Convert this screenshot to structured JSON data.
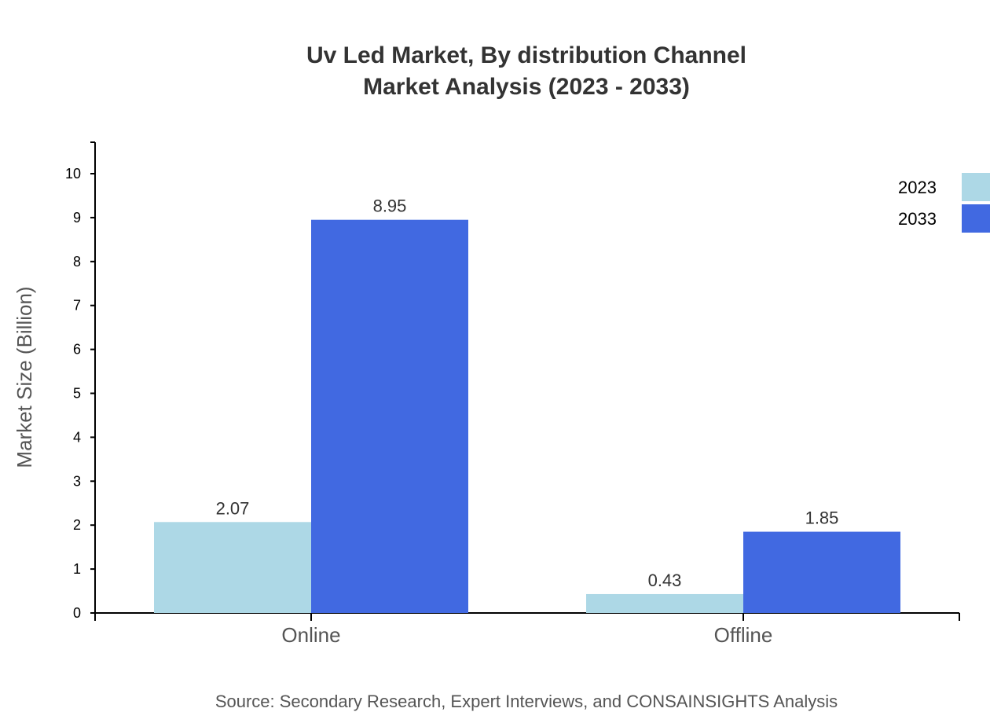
{
  "chart_data": {
    "type": "bar",
    "title_lines": [
      "Uv Led Market, By distribution Channel",
      "Market Analysis (2023 - 2033)"
    ],
    "xlabel": "",
    "ylabel": "Market Size (Billion)",
    "categories": [
      "Online",
      "Offline"
    ],
    "series": [
      {
        "name": "2023",
        "values": [
          2.07,
          0.43
        ],
        "color": "#ADD8E6"
      },
      {
        "name": "2033",
        "values": [
          8.95,
          1.85
        ],
        "color": "#4169E1"
      }
    ],
    "yticks": [
      0,
      1,
      2,
      3,
      4,
      5,
      6,
      7,
      8,
      9,
      10
    ],
    "ylim": [
      0,
      10.7
    ],
    "grid": false,
    "legend": "top-right",
    "source": "Source: Secondary Research, Expert Interviews, and CONSAINSIGHTS Analysis"
  }
}
